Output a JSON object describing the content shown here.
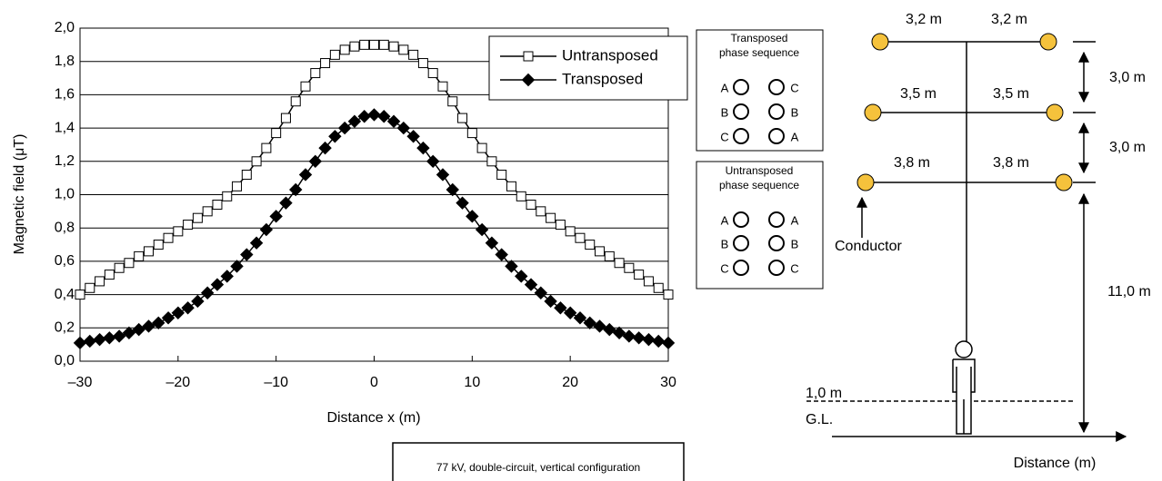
{
  "chart_data": {
    "type": "line",
    "ylabel": "Magnetic field  (μT)",
    "xlabel": "Distance x  (m)",
    "x": [
      -30,
      -29,
      -28,
      -27,
      -26,
      -25,
      -24,
      -23,
      -22,
      -21,
      -20,
      -19,
      -18,
      -17,
      -16,
      -15,
      -14,
      -13,
      -12,
      -11,
      -10,
      -9,
      -8,
      -7,
      -6,
      -5,
      -4,
      -3,
      -2,
      -1,
      0,
      1,
      2,
      3,
      4,
      5,
      6,
      7,
      8,
      9,
      10,
      11,
      12,
      13,
      14,
      15,
      16,
      17,
      18,
      19,
      20,
      21,
      22,
      23,
      24,
      25,
      26,
      27,
      28,
      29,
      30
    ],
    "series": [
      {
        "name": "Untransposed",
        "color": "#000000",
        "marker": "square",
        "values": [
          0.4,
          0.44,
          0.48,
          0.52,
          0.56,
          0.59,
          0.63,
          0.66,
          0.7,
          0.74,
          0.78,
          0.82,
          0.86,
          0.9,
          0.94,
          0.99,
          1.05,
          1.12,
          1.2,
          1.28,
          1.37,
          1.46,
          1.56,
          1.65,
          1.73,
          1.79,
          1.84,
          1.87,
          1.89,
          1.9,
          1.9,
          1.9,
          1.89,
          1.87,
          1.84,
          1.79,
          1.73,
          1.65,
          1.56,
          1.46,
          1.37,
          1.28,
          1.2,
          1.12,
          1.05,
          0.99,
          0.94,
          0.9,
          0.86,
          0.82,
          0.78,
          0.74,
          0.7,
          0.66,
          0.63,
          0.59,
          0.56,
          0.52,
          0.48,
          0.44,
          0.4
        ]
      },
      {
        "name": "Transposed",
        "color": "#000000",
        "marker": "diamond",
        "values": [
          0.11,
          0.12,
          0.13,
          0.14,
          0.15,
          0.17,
          0.19,
          0.21,
          0.23,
          0.26,
          0.29,
          0.32,
          0.36,
          0.41,
          0.46,
          0.51,
          0.57,
          0.64,
          0.71,
          0.79,
          0.87,
          0.95,
          1.03,
          1.12,
          1.2,
          1.28,
          1.35,
          1.4,
          1.44,
          1.47,
          1.48,
          1.47,
          1.44,
          1.4,
          1.35,
          1.28,
          1.2,
          1.12,
          1.03,
          0.95,
          0.87,
          0.79,
          0.71,
          0.64,
          0.57,
          0.51,
          0.46,
          0.41,
          0.36,
          0.32,
          0.29,
          0.26,
          0.23,
          0.21,
          0.19,
          0.17,
          0.15,
          0.14,
          0.13,
          0.12,
          0.11
        ]
      }
    ],
    "xlim": [
      -30,
      30
    ],
    "xticks": [
      {
        "value": -30,
        "label": "–30"
      },
      {
        "value": -20,
        "label": "–20"
      },
      {
        "value": -10,
        "label": "–10"
      },
      0,
      10,
      20,
      30
    ],
    "ylim": [
      0,
      2
    ],
    "yticks": [
      {
        "value": 0,
        "label": "0,0"
      },
      {
        "value": 0.2,
        "label": "0,2"
      },
      {
        "value": 0.4,
        "label": "0,4"
      },
      {
        "value": 0.6,
        "label": "0,6"
      },
      {
        "value": 0.8,
        "label": "0,8"
      },
      {
        "value": 1,
        "label": "1,0"
      },
      {
        "value": 1.2,
        "label": "1,2"
      },
      {
        "value": 1.4,
        "label": "1,4"
      },
      {
        "value": 1.6,
        "label": "1,6"
      },
      {
        "value": 1.8,
        "label": "1,8"
      },
      {
        "value": 2,
        "label": "2,0"
      }
    ],
    "grid": true,
    "legend": "upper right"
  },
  "transposed": {
    "title": [
      "Transposed",
      "phase sequence"
    ],
    "left": [
      "A",
      "B",
      "C"
    ],
    "right": [
      "C",
      "B",
      "A"
    ]
  },
  "untransposed": {
    "title": [
      "Untransposed",
      "phase sequence"
    ],
    "left": [
      "A",
      "B",
      "C"
    ],
    "right": [
      "A",
      "B",
      "C"
    ]
  },
  "note": "77 kV, double-circuit, vertical  configuration",
  "tower": {
    "top": "3,2 m",
    "middle": "3,5 m",
    "bottom": "3,8 m",
    "spacing": "3,0 m",
    "height": "11,0 m",
    "person": "1,0 m",
    "ground": "G.L.",
    "conductor": "Conductor",
    "axis": "Distance (m)"
  }
}
